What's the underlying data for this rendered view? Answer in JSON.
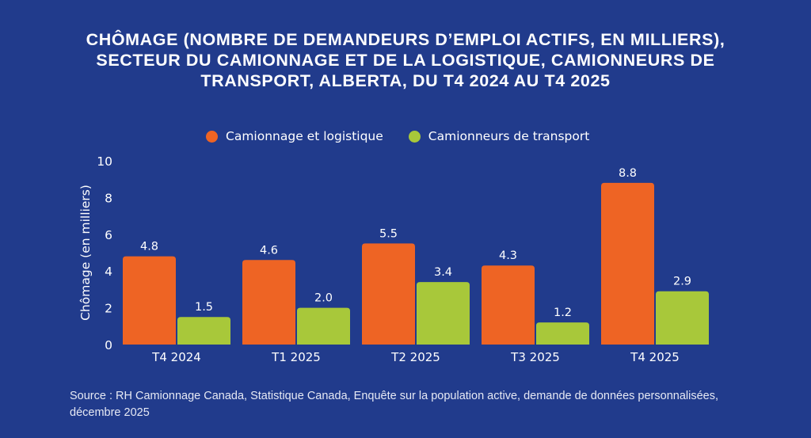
{
  "chart_data": {
    "type": "bar",
    "title_lines": [
      "CHÔMAGE (NOMBRE DE DEMANDEURS D’EMPLOI ACTIFS, EN MILLIERS),",
      "SECTEUR DU CAMIONNAGE ET DE LA LOGISTIQUE, CAMIONNEURS DE",
      "TRANSPORT, ALBERTA, DU T4 2024 AU T4 2025"
    ],
    "categories": [
      "T4 2024",
      "T1 2025",
      "T2 2025",
      "T3 2025",
      "T4 2025"
    ],
    "series": [
      {
        "name": "Camionnage et logistique",
        "color": "#ee6424",
        "values": [
          4.8,
          4.6,
          5.5,
          4.3,
          8.8
        ]
      },
      {
        "name": "Camionneurs de transport",
        "color": "#a8c83a",
        "values": [
          1.5,
          2.0,
          3.4,
          1.2,
          2.9
        ]
      }
    ],
    "data_labels": [
      [
        "4.8",
        "4.6",
        "5.5",
        "4.3",
        "8.8"
      ],
      [
        "1.5",
        "2.0",
        "3.4",
        "1.2",
        "2.9"
      ]
    ],
    "xlabel": "",
    "ylabel": "Chômage (en milliers)",
    "ylim": [
      0,
      10
    ],
    "yticks": [
      0,
      2,
      4,
      6,
      8,
      10
    ],
    "grid": false,
    "legend_position": "top-center"
  },
  "source": "Source : RH Camionnage Canada, Statistique Canada, Enquête sur la population active, demande de données personnalisées, décembre 2025",
  "colors": {
    "background": "#213b8c",
    "text": "#ffffff"
  }
}
